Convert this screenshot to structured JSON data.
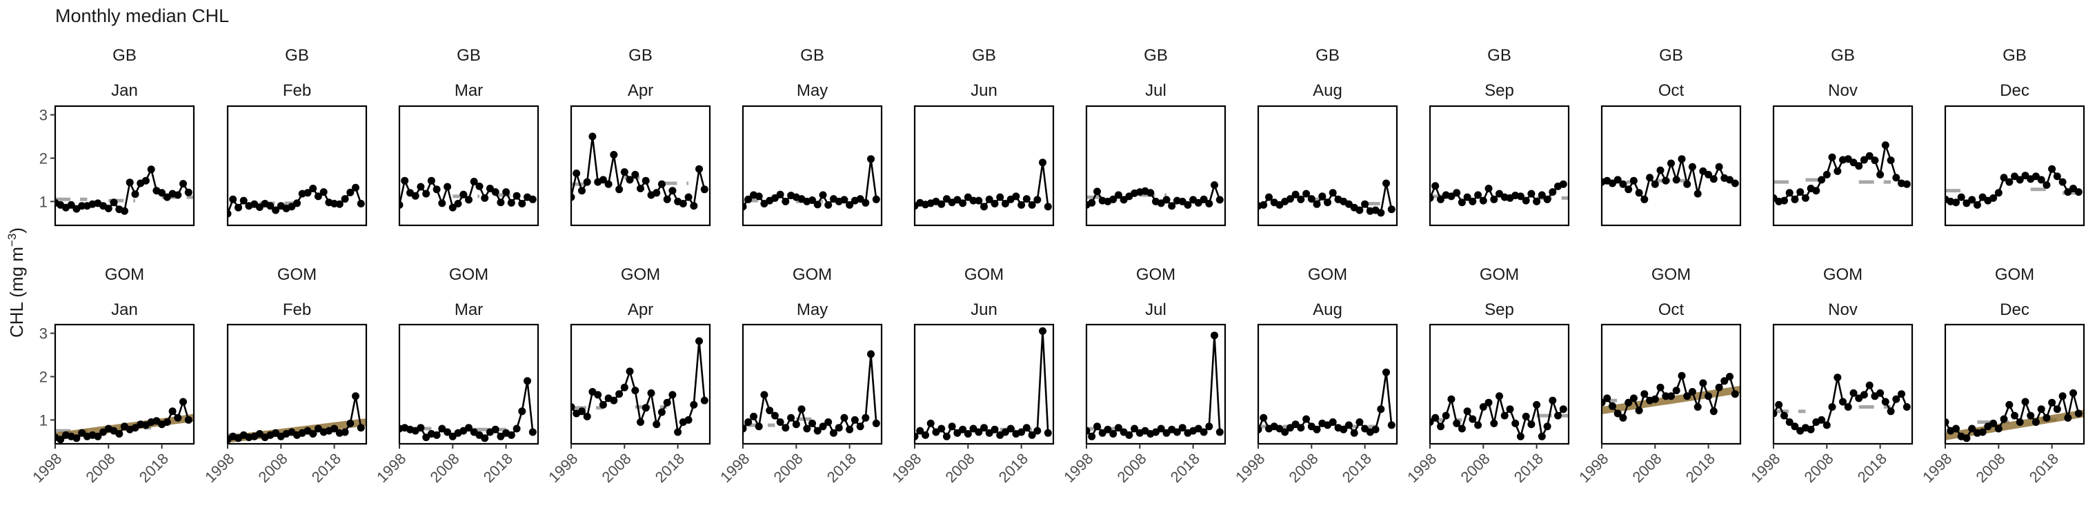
{
  "chart_data": {
    "type": "line",
    "title": "Monthly median CHL",
    "ylabel": "CHL (mg m⁻³)",
    "ylabel_main": "CHL (mg m",
    "ylabel_sup": "−3",
    "ylabel_close": ")",
    "xlim": [
      1998,
      2024
    ],
    "ylim": [
      0.45,
      3.2
    ],
    "x_ticks": [
      1998,
      2008,
      2018
    ],
    "y_ticks": [
      1,
      2,
      3
    ],
    "years_start": 1998,
    "grid": false,
    "regions": [
      "GB",
      "GOM"
    ],
    "months": [
      "Jan",
      "Feb",
      "Mar",
      "Apr",
      "May",
      "Jun",
      "Jul",
      "Aug",
      "Sep",
      "Oct",
      "Nov",
      "Dec"
    ],
    "panels": [
      {
        "region": "GB",
        "month": "Jan",
        "values": [
          0.97,
          0.92,
          0.86,
          0.92,
          0.83,
          0.9,
          0.9,
          0.94,
          0.96,
          0.9,
          0.84,
          0.98,
          0.82,
          0.78,
          1.44,
          1.17,
          1.42,
          1.48,
          1.74,
          1.25,
          1.2,
          1.1,
          1.18,
          1.15,
          1.41,
          1.21
        ],
        "dash": [
          [
            1998,
            2004,
            1.05
          ],
          [
            2008,
            2013,
            1.02
          ],
          [
            2018,
            2024,
            1.1
          ]
        ]
      },
      {
        "region": "GB",
        "month": "Feb",
        "values": [
          0.72,
          1.05,
          0.86,
          1.02,
          0.9,
          0.94,
          0.87,
          0.95,
          0.9,
          0.8,
          0.9,
          0.84,
          0.88,
          0.96,
          1.18,
          1.2,
          1.3,
          1.12,
          1.22,
          0.98,
          0.95,
          0.94,
          1.06,
          1.21,
          1.32,
          0.95
        ],
        "dash": [
          [
            2004,
            2012,
            0.96
          ]
        ]
      },
      {
        "region": "GB",
        "month": "Mar",
        "values": [
          0.92,
          1.48,
          1.2,
          1.13,
          1.34,
          1.18,
          1.48,
          1.28,
          0.96,
          1.34,
          0.86,
          0.95,
          1.16,
          1.04,
          1.46,
          1.35,
          1.08,
          1.3,
          1.22,
          0.98,
          1.22,
          0.97,
          1.13,
          0.95,
          1.1,
          1.05
        ],
        "dash": [
          [
            2008,
            2013,
            1.12
          ],
          [
            2016,
            2020,
            1.15
          ]
        ]
      },
      {
        "region": "GB",
        "month": "Apr",
        "values": [
          1.1,
          1.65,
          1.25,
          1.45,
          2.5,
          1.45,
          1.5,
          1.4,
          2.08,
          1.28,
          1.68,
          1.5,
          1.62,
          1.3,
          1.48,
          1.15,
          1.2,
          1.4,
          1.05,
          1.25,
          1.0,
          0.95,
          1.1,
          0.9,
          1.75,
          1.28
        ],
        "dash": [
          [
            1998,
            2001,
            1.4
          ],
          [
            2008,
            2012,
            1.55
          ],
          [
            2015,
            2020,
            1.42
          ]
        ]
      },
      {
        "region": "GB",
        "month": "May",
        "values": [
          0.88,
          1.05,
          1.15,
          1.12,
          0.95,
          1.02,
          1.08,
          1.16,
          1.0,
          1.14,
          1.1,
          1.06,
          1.0,
          1.03,
          0.93,
          1.15,
          0.92,
          1.06,
          1.0,
          1.04,
          0.92,
          1.02,
          1.06,
          0.97,
          1.98,
          1.05
        ],
        "dash": [
          [
            1998,
            2002,
            1.02
          ],
          [
            2008,
            2013,
            1.0
          ]
        ]
      },
      {
        "region": "GB",
        "month": "Jun",
        "values": [
          0.9,
          0.97,
          0.93,
          0.96,
          1.0,
          0.94,
          1.06,
          0.98,
          1.04,
          0.96,
          1.1,
          1.02,
          1.02,
          0.88,
          1.05,
          0.95,
          1.1,
          0.95,
          1.05,
          1.12,
          0.92,
          1.06,
          0.92,
          1.04,
          1.9,
          0.88
        ],
        "dash": []
      },
      {
        "region": "GB",
        "month": "Jul",
        "values": [
          0.92,
          0.97,
          1.23,
          1.02,
          1.0,
          1.05,
          1.15,
          1.04,
          1.12,
          1.19,
          1.22,
          1.24,
          1.2,
          1.0,
          0.96,
          1.04,
          0.9,
          1.02,
          1.0,
          0.92,
          1.04,
          0.97,
          1.05,
          0.95,
          1.38,
          1.04
        ],
        "dash": [
          [
            1998,
            2002,
            1.1
          ],
          [
            2008,
            2013,
            1.15
          ],
          [
            2018,
            2022,
            1.0
          ]
        ]
      },
      {
        "region": "GB",
        "month": "Aug",
        "values": [
          0.9,
          0.92,
          1.1,
          0.98,
          0.92,
          1.0,
          1.06,
          1.16,
          1.05,
          1.18,
          1.06,
          0.94,
          1.12,
          0.98,
          1.2,
          1.05,
          1.0,
          0.94,
          0.86,
          0.8,
          0.94,
          0.78,
          0.8,
          0.74,
          1.42,
          0.82
        ],
        "dash": [
          [
            2008,
            2012,
            1.05
          ],
          [
            2018,
            2022,
            0.95
          ]
        ]
      },
      {
        "region": "GB",
        "month": "Sep",
        "values": [
          1.08,
          1.36,
          1.05,
          1.15,
          1.12,
          1.2,
          0.98,
          1.1,
          1.0,
          1.15,
          1.02,
          1.3,
          1.05,
          1.18,
          1.1,
          1.08,
          1.14,
          1.12,
          1.02,
          1.18,
          1.0,
          1.15,
          1.05,
          1.22,
          1.35,
          1.4
        ],
        "dash": [
          [
            1998,
            2002,
            1.12
          ],
          [
            2018,
            2024,
            1.08
          ]
        ]
      },
      {
        "region": "GB",
        "month": "Oct",
        "values": [
          1.45,
          1.48,
          1.42,
          1.5,
          1.4,
          1.28,
          1.48,
          1.2,
          1.05,
          1.55,
          1.4,
          1.72,
          1.48,
          1.88,
          1.5,
          1.98,
          1.4,
          1.8,
          1.18,
          1.7,
          1.62,
          1.52,
          1.8,
          1.54,
          1.5,
          1.42
        ],
        "dash": [
          [
            1998,
            2004,
            1.45
          ],
          [
            2008,
            2014,
            1.48
          ]
        ]
      },
      {
        "region": "GB",
        "month": "Nov",
        "values": [
          1.08,
          1.0,
          1.02,
          1.2,
          1.05,
          1.22,
          1.08,
          1.3,
          1.25,
          1.5,
          1.62,
          2.02,
          1.7,
          1.96,
          1.98,
          1.9,
          1.82,
          1.96,
          2.05,
          1.95,
          1.62,
          2.3,
          1.95,
          1.55,
          1.42,
          1.4
        ],
        "dash": [
          [
            1998,
            2002,
            1.45
          ],
          [
            2004,
            2008,
            1.5
          ],
          [
            2014,
            2020,
            1.45
          ]
        ]
      },
      {
        "region": "GB",
        "month": "Dec",
        "values": [
          1.05,
          1.0,
          0.98,
          1.1,
          0.96,
          1.04,
          0.92,
          1.1,
          1.02,
          1.08,
          1.2,
          1.55,
          1.45,
          1.58,
          1.5,
          1.6,
          1.52,
          1.58,
          1.5,
          1.38,
          1.75,
          1.58,
          1.45,
          1.22,
          1.3,
          1.22
        ],
        "dash": [
          [
            1998,
            2002,
            1.25
          ],
          [
            2014,
            2018,
            1.28
          ],
          [
            2020,
            2024,
            1.2
          ]
        ]
      },
      {
        "region": "GOM",
        "month": "Jan",
        "values": [
          0.6,
          0.55,
          0.65,
          0.62,
          0.58,
          0.7,
          0.62,
          0.65,
          0.62,
          0.72,
          0.8,
          0.75,
          0.68,
          0.85,
          0.78,
          0.82,
          0.9,
          0.88,
          0.95,
          0.98,
          0.9,
          0.95,
          1.2,
          1.05,
          1.42,
          1.0
        ],
        "dash": [
          [
            1998,
            2004,
            0.75
          ],
          [
            2010,
            2016,
            0.82
          ]
        ],
        "trend": [
          [
            1998,
            0.62
          ],
          [
            2024,
            1.05
          ]
        ]
      },
      {
        "region": "GOM",
        "month": "Feb",
        "values": [
          0.55,
          0.62,
          0.58,
          0.65,
          0.6,
          0.62,
          0.68,
          0.6,
          0.65,
          0.7,
          0.62,
          0.68,
          0.72,
          0.65,
          0.7,
          0.75,
          0.68,
          0.8,
          0.72,
          0.75,
          0.8,
          0.7,
          0.72,
          0.92,
          1.55,
          0.82
        ],
        "dash": [
          [
            1998,
            2004,
            0.65
          ],
          [
            2012,
            2016,
            0.7
          ]
        ],
        "trend": [
          [
            1998,
            0.56
          ],
          [
            2024,
            0.95
          ]
        ]
      },
      {
        "region": "GOM",
        "month": "Mar",
        "values": [
          0.8,
          0.82,
          0.78,
          0.75,
          0.82,
          0.6,
          0.68,
          0.65,
          0.8,
          0.72,
          0.62,
          0.7,
          0.75,
          0.82,
          0.72,
          0.65,
          0.58,
          0.72,
          0.78,
          0.62,
          0.7,
          0.65,
          0.8,
          1.2,
          1.9,
          0.72
        ],
        "dash": [
          [
            1998,
            2004,
            0.8
          ],
          [
            2012,
            2018,
            0.78
          ]
        ]
      },
      {
        "region": "GOM",
        "month": "Apr",
        "values": [
          1.3,
          1.15,
          1.2,
          1.08,
          1.65,
          1.58,
          1.35,
          1.5,
          1.45,
          1.6,
          1.75,
          2.12,
          1.68,
          0.95,
          1.28,
          1.62,
          0.9,
          1.18,
          1.4,
          1.58,
          0.72,
          0.95,
          1.0,
          1.35,
          2.82,
          1.45
        ],
        "dash": [
          [
            1998,
            2004,
            1.28
          ],
          [
            2010,
            2016,
            1.3
          ]
        ]
      },
      {
        "region": "GOM",
        "month": "May",
        "values": [
          0.8,
          0.95,
          1.08,
          0.85,
          1.58,
          1.22,
          1.1,
          0.95,
          0.82,
          1.05,
          0.9,
          1.25,
          0.8,
          0.92,
          0.75,
          0.85,
          0.95,
          0.7,
          0.82,
          1.05,
          0.78,
          1.0,
          0.85,
          1.05,
          2.52,
          0.92
        ],
        "dash": [
          [
            1998,
            2004,
            0.88
          ],
          [
            2008,
            2012,
            1.02
          ]
        ]
      },
      {
        "region": "GOM",
        "month": "Jun",
        "values": [
          0.62,
          0.75,
          0.65,
          0.92,
          0.72,
          0.8,
          0.62,
          0.85,
          0.7,
          0.78,
          0.68,
          0.8,
          0.72,
          0.82,
          0.7,
          0.78,
          0.65,
          0.72,
          0.8,
          0.68,
          0.72,
          0.82,
          0.65,
          0.75,
          3.05,
          0.7
        ],
        "dash": [
          [
            2014,
            2020,
            0.78
          ]
        ]
      },
      {
        "region": "GOM",
        "month": "Jul",
        "values": [
          0.75,
          0.62,
          0.85,
          0.7,
          0.78,
          0.68,
          0.82,
          0.72,
          0.65,
          0.8,
          0.7,
          0.75,
          0.68,
          0.72,
          0.8,
          0.7,
          0.78,
          0.72,
          0.82,
          0.7,
          0.75,
          0.8,
          0.72,
          0.85,
          2.95,
          0.72
        ],
        "dash": [
          [
            1998,
            2004,
            0.8
          ]
        ]
      },
      {
        "region": "GOM",
        "month": "Aug",
        "values": [
          0.78,
          1.05,
          0.8,
          0.85,
          0.8,
          0.72,
          0.82,
          0.9,
          0.82,
          1.02,
          0.85,
          0.78,
          0.92,
          0.88,
          0.95,
          0.82,
          0.78,
          0.88,
          0.7,
          0.95,
          0.8,
          0.72,
          0.78,
          1.25,
          2.1,
          0.88
        ],
        "dash": [
          [
            1998,
            2004,
            0.85
          ],
          [
            2014,
            2020,
            0.85
          ]
        ]
      },
      {
        "region": "GOM",
        "month": "Sep",
        "values": [
          0.95,
          1.05,
          0.85,
          1.1,
          1.48,
          0.92,
          0.8,
          1.2,
          1.02,
          0.88,
          1.3,
          1.4,
          0.92,
          1.55,
          1.1,
          1.25,
          0.92,
          0.62,
          1.08,
          0.9,
          1.35,
          0.62,
          0.85,
          1.45,
          1.1,
          1.25
        ],
        "dash": [
          [
            1998,
            2004,
            1.0
          ],
          [
            2018,
            2024,
            1.1
          ]
        ]
      },
      {
        "region": "GOM",
        "month": "Oct",
        "values": [
          1.4,
          1.5,
          1.32,
          1.15,
          1.05,
          1.4,
          1.5,
          1.22,
          1.6,
          1.45,
          1.48,
          1.75,
          1.55,
          1.55,
          1.68,
          2.02,
          1.55,
          1.65,
          1.3,
          1.85,
          1.55,
          1.2,
          1.75,
          1.9,
          2.0,
          1.6
        ],
        "dash": [
          [
            1998,
            2004,
            1.45
          ]
        ],
        "trend": [
          [
            1998,
            1.22
          ],
          [
            2024,
            1.7
          ]
        ]
      },
      {
        "region": "GOM",
        "month": "Nov",
        "values": [
          1.15,
          1.35,
          1.1,
          0.95,
          0.85,
          0.75,
          0.82,
          0.78,
          0.95,
          1.0,
          0.88,
          1.3,
          1.98,
          1.42,
          1.3,
          1.62,
          1.5,
          1.58,
          1.8,
          1.55,
          1.62,
          1.42,
          1.2,
          1.48,
          1.6,
          1.3
        ],
        "dash": [
          [
            1998,
            2004,
            1.2
          ],
          [
            2014,
            2020,
            1.3
          ]
        ]
      },
      {
        "region": "GOM",
        "month": "Dec",
        "values": [
          0.95,
          0.75,
          0.8,
          0.62,
          0.58,
          0.8,
          0.7,
          0.72,
          0.85,
          0.92,
          0.8,
          1.02,
          1.35,
          1.1,
          0.95,
          1.42,
          1.1,
          0.95,
          1.25,
          1.05,
          1.4,
          1.25,
          1.55,
          1.05,
          1.62,
          1.15
        ],
        "dash": [
          [
            2004,
            2010,
            0.95
          ],
          [
            2016,
            2020,
            1.0
          ]
        ],
        "trend": [
          [
            1998,
            0.62
          ],
          [
            2024,
            1.15
          ]
        ]
      }
    ]
  }
}
